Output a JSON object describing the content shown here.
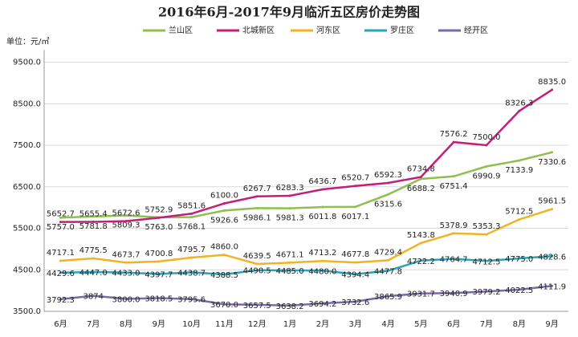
{
  "chart_data": {
    "type": "line",
    "title": "2016年6月-2017年9月临沂五区房价走势图",
    "y_label": "单位：元/㎡",
    "categories": [
      "6月",
      "7月",
      "8月",
      "9月",
      "10月",
      "11月",
      "12月",
      "1月",
      "2月",
      "3月",
      "4月",
      "5月",
      "6月",
      "7月",
      "8月",
      "9月"
    ],
    "series": [
      {
        "name": "兰山区",
        "color": "#8dc04f",
        "values": [
          5757.0,
          5781.8,
          5809.3,
          5763.0,
          5768.1,
          5926.6,
          5986.1,
          5981.3,
          6011.8,
          6017.1,
          6315.6,
          6688.2,
          6751.4,
          6990.9,
          7133.9,
          7330.6
        ],
        "value_labels": [
          "5757.0",
          "5781.8",
          "5809.3",
          "5763.0",
          "5768.1",
          "5926.6",
          "5986.1",
          "5981.3",
          "6011.8",
          "6017.1",
          "6315.6",
          "6688.2",
          "6751.4",
          "6990.9",
          "7133.9",
          "7330.6"
        ]
      },
      {
        "name": "北城新区",
        "color": "#c21f7a",
        "values": [
          5652.7,
          5655.4,
          5672.6,
          5752.9,
          5851.6,
          6100.0,
          6267.7,
          6283.3,
          6436.7,
          6520.7,
          6592.3,
          6734.8,
          7576.2,
          7500.0,
          8326.3,
          8835.0
        ],
        "value_labels": [
          "5652.7",
          "5655.4",
          "5672.6",
          "5752.9",
          "5851.6",
          "6100.0",
          "6267.7",
          "6283.3",
          "6436.7",
          "6520.7",
          "6592.3",
          "6734.8",
          "7576.2",
          "7500.0",
          "8326.3",
          "8835.0"
        ]
      },
      {
        "name": "河东区",
        "color": "#f0b323",
        "values": [
          4717.1,
          4775.5,
          4673.7,
          4700.8,
          4795.7,
          4860.0,
          4639.5,
          4671.1,
          4713.2,
          4677.8,
          4729.4,
          5143.8,
          5378.9,
          5353.3,
          5712.5,
          5961.5
        ],
        "value_labels": [
          "4717.1",
          "4775.5",
          "4673.7",
          "4700.8",
          "4795.7",
          "4860.0",
          "4639.5",
          "4671.1",
          "4713.2",
          "4677.8",
          "4729.4",
          "5143.8",
          "5378.9",
          "5353.3",
          "5712.5",
          "5961.5"
        ]
      },
      {
        "name": "罗庄区",
        "color": "#2aa3b5",
        "values": [
          4429.6,
          4447.0,
          4433.0,
          4397.7,
          4438.7,
          4388.5,
          4490.5,
          4485.0,
          4480.0,
          4394.4,
          4477.8,
          4722.2,
          4764.7,
          4712.5,
          4775.0,
          4828.6
        ],
        "value_labels": [
          "4429.6",
          "4447.0",
          "4433.0",
          "4397.7",
          "4438.7",
          "4388.5",
          "4490.5",
          "4485.0",
          "4480.0",
          "4394.4",
          "4477.8",
          "4722.2",
          "4764.7",
          "4712.5",
          "4775.0",
          "4828.6"
        ]
      },
      {
        "name": "经开区",
        "color": "#7b6aa8",
        "values": [
          3792.3,
          3874,
          3800.0,
          3818.5,
          3795.6,
          3670.0,
          3657.5,
          3638.2,
          3694.2,
          3732.6,
          3865.9,
          3931.7,
          3940.9,
          3979.2,
          4022.5,
          4111.9
        ],
        "value_labels": [
          "3792.3",
          "3874",
          "3800.0",
          "3818.5",
          "3795.6",
          "3670.0",
          "3657.5",
          "3638.2",
          "3694.2",
          "3732.6",
          "3865.9",
          "3931.7",
          "3940.9",
          "3979.2",
          "4022.5",
          "4111.9"
        ]
      }
    ],
    "ylim": [
      3500,
      9800
    ],
    "yticks": [
      {
        "value": 3500,
        "label": "3500.0"
      },
      {
        "value": 4500,
        "label": "4500.0"
      },
      {
        "value": 5500,
        "label": "5500.0"
      },
      {
        "value": 6500,
        "label": "6500.0"
      },
      {
        "value": 7500,
        "label": "7500.0"
      },
      {
        "value": 8500,
        "label": "8500.0"
      },
      {
        "value": 9500,
        "label": "9500.0"
      }
    ],
    "grid": true
  }
}
